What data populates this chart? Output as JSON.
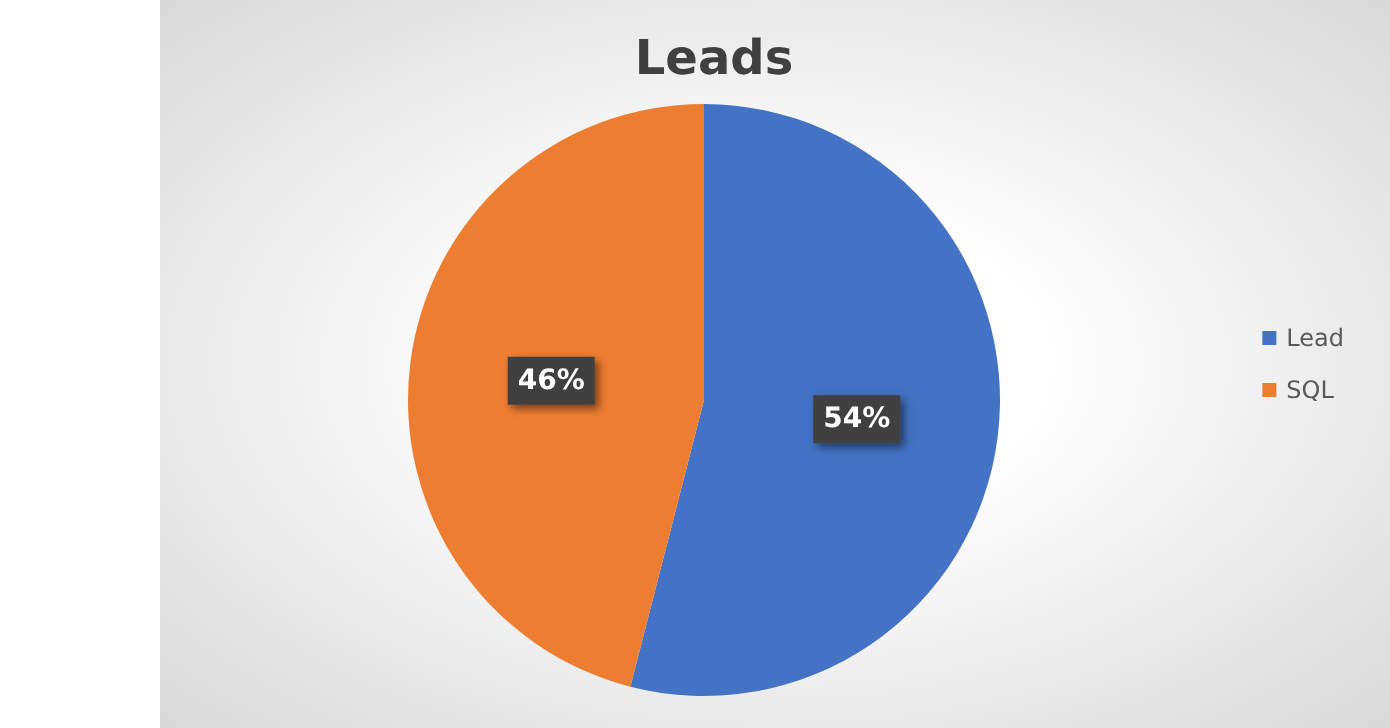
{
  "chart_data": {
    "type": "pie",
    "title": "Leads",
    "categories": [
      "Lead",
      "SQL"
    ],
    "values": [
      54,
      46
    ],
    "colors": [
      "#4472c4",
      "#ed7d31"
    ],
    "value_labels": [
      "54%",
      "46%"
    ],
    "legend": "right"
  }
}
